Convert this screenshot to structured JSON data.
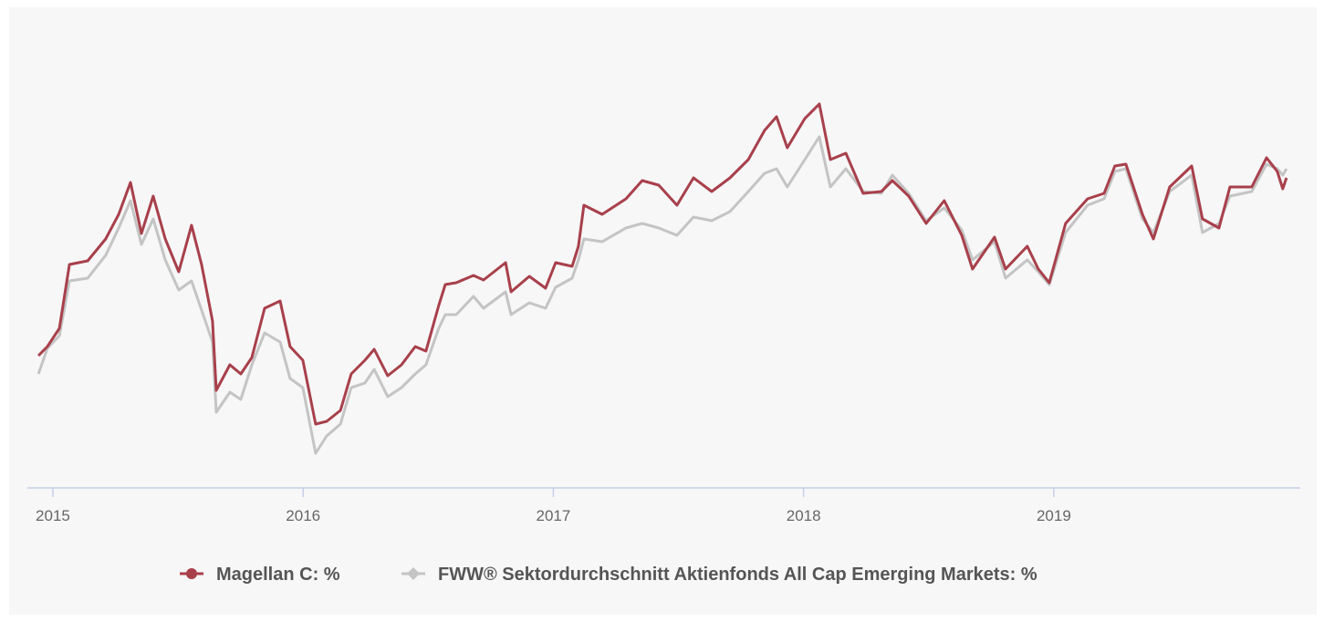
{
  "chart_data": {
    "type": "line",
    "x": [
      2014.942,
      2014.978,
      2015.026,
      2015.066,
      2015.139,
      2015.211,
      2015.263,
      2015.31,
      2015.354,
      2015.401,
      2015.449,
      2015.503,
      2015.554,
      2015.594,
      2015.638,
      2015.653,
      2015.707,
      2015.751,
      2015.795,
      2015.846,
      2015.908,
      2015.948,
      2015.999,
      2016.05,
      2016.094,
      2016.149,
      2016.192,
      2016.247,
      2016.284,
      2016.338,
      2016.393,
      2016.448,
      2016.491,
      2016.542,
      2016.568,
      2016.612,
      2016.681,
      2016.721,
      2016.809,
      2016.831,
      2016.904,
      2016.969,
      2017.009,
      2017.075,
      2017.1,
      2017.122,
      2017.195,
      2017.29,
      2017.355,
      2017.421,
      2017.494,
      2017.56,
      2017.633,
      2017.706,
      2017.779,
      2017.844,
      2017.892,
      2017.935,
      2018.005,
      2018.063,
      2018.107,
      2018.169,
      2018.238,
      2018.311,
      2018.355,
      2018.42,
      2018.49,
      2018.562,
      2018.632,
      2018.675,
      2018.763,
      2018.807,
      2018.894,
      2018.938,
      2018.982,
      2019.047,
      2019.135,
      2019.201,
      2019.244,
      2019.288,
      2019.354,
      2019.398,
      2019.463,
      2019.551,
      2019.594,
      2019.66,
      2019.704,
      2019.791,
      2019.85,
      2019.893,
      2019.915,
      2019.93
    ],
    "series": [
      {
        "name": "Magellan C: %",
        "color": "#a8404b",
        "marker": "circle",
        "values": [
          145,
          155,
          175,
          245,
          249,
          273,
          300,
          335,
          279,
          320,
          273,
          237,
          288,
          245,
          183,
          107,
          135,
          125,
          143,
          197,
          205,
          155,
          140,
          70,
          73,
          85,
          125,
          140,
          152,
          123,
          135,
          155,
          150,
          200,
          223,
          225,
          233,
          228,
          247,
          215,
          232,
          219,
          247,
          243,
          265,
          310,
          300,
          317,
          337,
          332,
          310,
          340,
          325,
          340,
          360,
          392,
          407,
          373,
          405,
          421,
          360,
          367,
          323,
          325,
          337,
          320,
          290,
          315,
          277,
          240,
          275,
          240,
          265,
          240,
          225,
          290,
          317,
          323,
          353,
          355,
          300,
          273,
          330,
          353,
          295,
          285,
          330,
          330,
          362,
          347,
          328,
          340
        ]
      },
      {
        "name": "FWW® Sektordurchschnitt Aktienfonds All Cap Emerging Markets: %",
        "color": "#c4c4c4",
        "marker": "diamond",
        "values": [
          125,
          153,
          167,
          227,
          230,
          255,
          285,
          315,
          267,
          295,
          250,
          217,
          227,
          195,
          160,
          83,
          105,
          97,
          135,
          170,
          160,
          120,
          110,
          38,
          57,
          70,
          110,
          115,
          130,
          100,
          110,
          125,
          135,
          175,
          190,
          190,
          210,
          197,
          215,
          190,
          203,
          197,
          220,
          230,
          250,
          273,
          270,
          285,
          290,
          285,
          277,
          297,
          293,
          303,
          325,
          345,
          350,
          330,
          360,
          385,
          330,
          350,
          325,
          323,
          343,
          323,
          293,
          307,
          283,
          250,
          270,
          230,
          250,
          237,
          223,
          280,
          310,
          317,
          347,
          350,
          295,
          280,
          325,
          343,
          280,
          290,
          320,
          325,
          355,
          350,
          343,
          350
        ]
      }
    ],
    "xlim": [
      2014.898,
      2019.985
    ],
    "xticks": [
      2015,
      2016,
      2017,
      2018,
      2019
    ],
    "ylim": [
      0,
      500
    ],
    "legend": "bottom"
  }
}
